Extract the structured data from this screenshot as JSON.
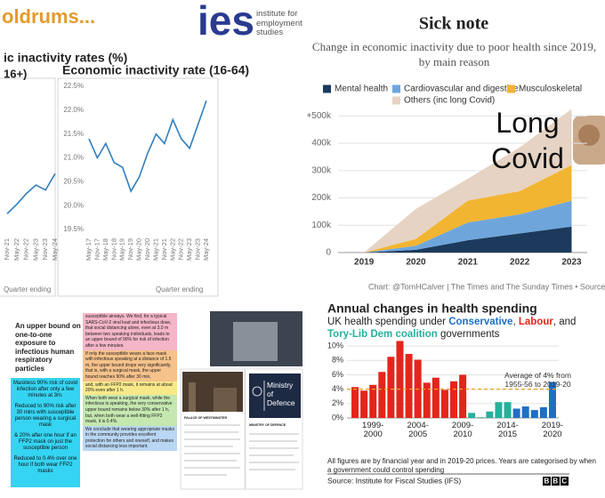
{
  "ies_header": {
    "headline": "oldrums...",
    "logo": "ies",
    "org": "institute for employment studies"
  },
  "collage": {
    "headline": "An upper bound on one-to-one exposure to infectious human respiratory particles",
    "summary": [
      "Maskless 90% risk of covid infection after only a few minutes at 3m.",
      "Reduced to 90% risk after 30 mins with susceptible person wearing a surgical mask",
      "& 20% after one hour if an FFP2 mask on just the susceptible person",
      "Reduced to 0.4% over one hour if both wear FFP2 masks"
    ],
    "abstract": [
      "susceptible airways. We find, for a typical SARS-CoV-2 viral load and infectious dose, that social distancing alone, even at 3.0 m between two speaking individuals, leads to an upper bound of 90% for risk of infection after a few minutes.",
      "If only the susceptible wears a face mask with infectious speaking at a distance of 1.5 m, the upper bound drops very significantly, that is, with a surgical mask, the upper bound reaches 90% after 30 min,",
      "and, with an FFP2 mask, it remains at about 20% even after 1 h.",
      "When both wear a surgical mask, while the infectious is speaking, the very conservative upper bound remains below 30% after 1 h, but, when both wear a well-fitting FFP2 mask, it is 0.4%.",
      "We conclude that wearing appropriate masks in the community provides excellent protection for others and oneself, and makes social distancing less important."
    ],
    "doc_heading": "PALACE OF WESTMINSTER",
    "logo": "Ministry of Defence",
    "doc_heading_2": "MINISTRY OF DEFENCE"
  },
  "chart_data": [
    {
      "type": "line",
      "title": "ic inactivity rates (%)",
      "subtitle": "16+)",
      "x_label": "Quarter ending",
      "categories": [
        "Nov-21",
        "May-22",
        "Nov-22",
        "May-23",
        "Nov-23",
        "May-24"
      ],
      "values": [
        20.22,
        20.35,
        20.5,
        20.62,
        20.55,
        20.78
      ],
      "color": "#2f7fc1",
      "ylim": [
        20,
        22
      ]
    },
    {
      "type": "line",
      "title": "Economic inactivity rate (16-64)",
      "x_label": "Quarter ending",
      "categories": [
        "May-17",
        "Nov-17",
        "May-18",
        "Nov-18",
        "May-19",
        "Nov-19",
        "May-20",
        "Nov-20",
        "May-21",
        "Nov-21",
        "May-22",
        "Nov-22",
        "May-23",
        "Nov-23",
        "May-24"
      ],
      "values": [
        21.4,
        21.0,
        21.3,
        20.9,
        20.8,
        20.3,
        20.6,
        21.1,
        21.5,
        21.3,
        21.8,
        21.4,
        21.2,
        21.7,
        22.2
      ],
      "color": "#2f7fc1",
      "ylim": [
        19.5,
        22.5
      ],
      "yticks": [
        {
          "value": 19.5,
          "label": "19.5%"
        },
        {
          "value": 20,
          "label": "20.0%"
        },
        {
          "value": 20.5,
          "label": "20.5%"
        },
        {
          "value": 21,
          "label": "21.0%"
        },
        {
          "value": 21.5,
          "label": "21.5%"
        },
        {
          "value": 22,
          "label": "22.0%"
        },
        {
          "value": 22.5,
          "label": "22.5%"
        }
      ],
      "grid": false
    },
    {
      "type": "area",
      "stacked": true,
      "title": "Sick note",
      "subtitle": "Change in economic inactivity due to poor health since 2019, by main reason",
      "x": [
        2019,
        2020,
        2021,
        2022,
        2023
      ],
      "xlim": [
        2018.5,
        2023.3
      ],
      "xticks": [
        2019,
        2020,
        2021,
        2022,
        2023
      ],
      "ylim": [
        0,
        550000
      ],
      "yticks": [
        0,
        {
          "value": 100000,
          "label": "100k"
        },
        {
          "value": 200000,
          "label": "200k"
        },
        {
          "value": 300000,
          "label": "300k"
        },
        {
          "value": 400000,
          "label": "400k"
        },
        {
          "value": 500000,
          "label": "+500k"
        }
      ],
      "grid": true,
      "series": [
        {
          "name": "Mental health",
          "color": "#1b3a5c",
          "values": [
            0,
            10000,
            45000,
            70000,
            95000
          ]
        },
        {
          "name": "Cardiovascular and digestive",
          "color": "#6ea6dc",
          "values": [
            0,
            15000,
            65000,
            70000,
            95000
          ]
        },
        {
          "name": "Musculoskeletal",
          "color": "#f2b531",
          "values": [
            0,
            25000,
            80000,
            85000,
            130000
          ]
        },
        {
          "name": "Others (inc long Covid)",
          "color": "#e6d3c3",
          "values": [
            0,
            110000,
            80000,
            160000,
            205000
          ]
        }
      ],
      "annotation": "Long Covid",
      "source": "Chart: @TomHCalver | The Times and The Sunday Times • Source: ONS"
    },
    {
      "type": "bar",
      "title": "Annual changes in health spending",
      "subtitle_parts": [
        "UK health spending under",
        ",",
        ", and",
        "governments"
      ],
      "categories": [
        null,
        null,
        "1999-2000",
        null,
        null,
        null,
        null,
        "2004-2005",
        null,
        null,
        null,
        null,
        "2009-2010",
        null,
        null,
        null,
        null,
        "2014-2015",
        null,
        null,
        null,
        null,
        "2019-2020"
      ],
      "series": [
        {
          "name": "Labour",
          "color": "#e4251c",
          "values": [
            4.3,
            3.8,
            4.6,
            6.4,
            8.5,
            10.7,
            8.9,
            8.1,
            4.9,
            5.6,
            3.9,
            5.1,
            6.0,
            null,
            null,
            null,
            null,
            null,
            null,
            null,
            null,
            null,
            null
          ]
        },
        {
          "name": "Tory-Lib Dem coalition",
          "color": "#26b09c",
          "values": [
            null,
            null,
            null,
            null,
            null,
            null,
            null,
            null,
            null,
            null,
            null,
            null,
            null,
            0.7,
            0.1,
            0.9,
            2.2,
            2.2,
            null,
            null,
            null,
            null,
            null
          ]
        },
        {
          "name": "Conservative",
          "color": "#1e6fc4",
          "values": [
            null,
            null,
            null,
            null,
            null,
            null,
            null,
            null,
            null,
            null,
            null,
            null,
            null,
            null,
            null,
            null,
            null,
            null,
            1.3,
            1.6,
            1.1,
            1.5,
            5.0
          ]
        }
      ],
      "ylim": [
        0,
        11
      ],
      "yticks": [
        {
          "value": 0,
          "label": "0%"
        },
        {
          "value": 2,
          "label": "2%"
        },
        {
          "value": 4,
          "label": "4%"
        },
        {
          "value": 6,
          "label": "6%"
        },
        {
          "value": 8,
          "label": "8%"
        },
        {
          "value": 10,
          "label": "10%"
        }
      ],
      "grid": true,
      "average": 4,
      "average_color": "#e8a020",
      "annotation": "Average of 4% from 1955-56 to 2019-20",
      "note": "All figures are by financial year and in 2019-20 prices. Years are categorised by when a government could control spending",
      "source": "Source: Institute for Fiscal Studies (IFS)",
      "logo": "BBC"
    }
  ]
}
